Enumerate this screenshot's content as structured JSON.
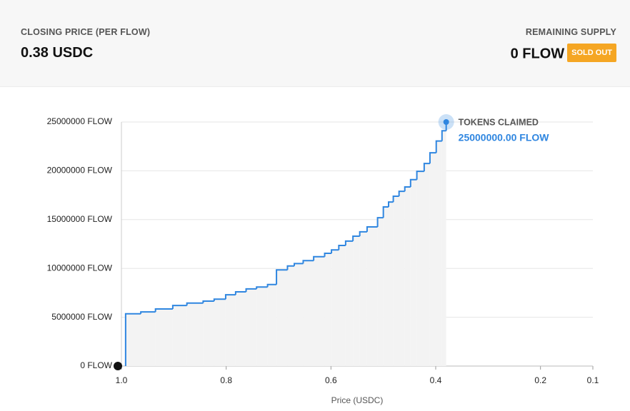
{
  "header": {
    "left": {
      "label": "CLOSING PRICE (PER FLOW)",
      "value": "0.38 USDC"
    },
    "right": {
      "label": "REMAINING SUPPLY",
      "value": "0 FLOW",
      "badge": "SOLD OUT"
    }
  },
  "chart_data": {
    "type": "step",
    "x_label": "Price (USDC)",
    "annotation": {
      "title": "TOKENS CLAIMED",
      "label": "25000000.00 FLOW"
    },
    "x": [
      0.992,
      0.992,
      0.963,
      0.935,
      0.902,
      0.875,
      0.844,
      0.823,
      0.801,
      0.782,
      0.762,
      0.742,
      0.721,
      0.704,
      0.683,
      0.67,
      0.653,
      0.633,
      0.612,
      0.599,
      0.585,
      0.572,
      0.558,
      0.545,
      0.531,
      0.511,
      0.5,
      0.49,
      0.481,
      0.47,
      0.459,
      0.448,
      0.436,
      0.422,
      0.411,
      0.399,
      0.388,
      0.38
    ],
    "series": [
      {
        "name": "Tokens claimed",
        "color": "#2f86e0",
        "values": [
          0,
          5350000,
          5550000,
          5850000,
          6200000,
          6450000,
          6650000,
          6850000,
          7300000,
          7600000,
          7900000,
          8100000,
          8350000,
          9850000,
          10250000,
          10500000,
          10800000,
          11200000,
          11550000,
          11900000,
          12350000,
          12800000,
          13300000,
          13750000,
          14250000,
          15200000,
          16300000,
          16800000,
          17400000,
          17900000,
          18350000,
          19100000,
          19950000,
          20750000,
          21850000,
          23050000,
          24100000,
          25000000
        ]
      }
    ],
    "xlim": [
      1,
      0.1
    ],
    "xticks": [
      {
        "value": 1,
        "label": "1.0"
      },
      0.8,
      0.6,
      0.4,
      0.2,
      0.1
    ],
    "ylim": [
      0,
      25000000
    ],
    "yticks": [
      {
        "value": 0,
        "label": "0 FLOW"
      },
      {
        "value": 5000000,
        "label": "5000000 FLOW"
      },
      {
        "value": 10000000,
        "label": "10000000 FLOW"
      },
      {
        "value": 15000000,
        "label": "15000000 FLOW"
      },
      {
        "value": 20000000,
        "label": "20000000 FLOW"
      },
      {
        "value": 25000000,
        "label": "25000000 FLOW"
      }
    ],
    "grid": true,
    "area_color": "#f3f3f3"
  }
}
